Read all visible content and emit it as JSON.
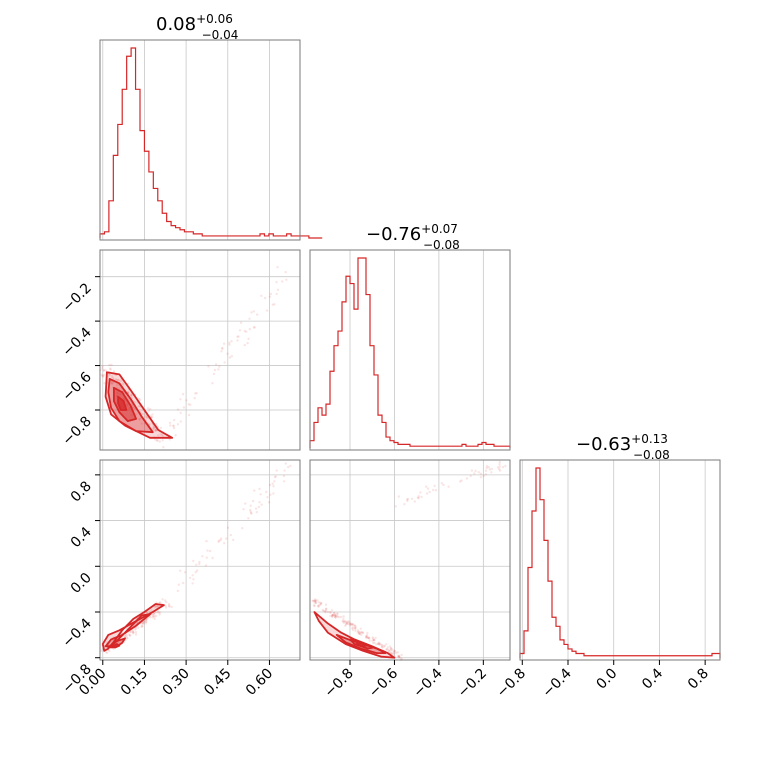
{
  "chart_data": {
    "type": "corner",
    "color": "#d62728",
    "grid": true,
    "parameters": [
      {
        "median": "0.08",
        "plus": "+0.06",
        "minus": "−0.04",
        "range": [
          -0.01,
          0.71
        ],
        "ticks": [
          0.0,
          0.15,
          0.3,
          0.45,
          0.6
        ],
        "tick_labels": [
          "0.00",
          "0.15",
          "0.30",
          "0.45",
          "0.60"
        ]
      },
      {
        "median": "−0.76",
        "plus": "+0.07",
        "minus": "−0.08",
        "range": [
          -0.98,
          -0.08
        ],
        "ticks": [
          -0.8,
          -0.6,
          -0.4,
          -0.2
        ],
        "tick_labels": [
          "−0.8",
          "−0.6",
          "−0.4",
          "−0.2"
        ]
      },
      {
        "median": "−0.63",
        "plus": "+0.13",
        "minus": "−0.08",
        "range": [
          -0.82,
          0.93
        ],
        "ticks": [
          -0.8,
          -0.4,
          0.0,
          0.4,
          0.8
        ],
        "tick_labels": [
          "−0.8",
          "−0.4",
          "0.0",
          "0.4",
          "0.8"
        ]
      }
    ],
    "histograms": [
      {
        "param": 0,
        "bin_start": -0.01,
        "bin_width": 0.016,
        "counts": [
          2,
          3,
          18,
          40,
          55,
          72,
          88,
          92,
          72,
          52,
          42,
          32,
          24,
          18,
          12,
          8,
          6,
          5,
          4,
          3,
          3,
          2,
          2,
          1,
          1,
          1,
          1,
          1,
          1,
          1,
          1,
          1,
          1,
          1,
          1,
          1,
          2,
          1,
          2,
          1,
          1,
          1,
          2,
          1,
          1,
          1,
          1,
          0,
          0,
          0
        ]
      },
      {
        "param": 1,
        "bin_start": -0.98,
        "bin_width": 0.018,
        "counts": [
          4,
          14,
          22,
          18,
          24,
          42,
          56,
          64,
          80,
          94,
          90,
          76,
          104,
          104,
          84,
          56,
          40,
          18,
          14,
          6,
          4,
          3,
          2,
          2,
          2,
          1,
          1,
          1,
          1,
          1,
          1,
          1,
          1,
          1,
          1,
          1,
          1,
          1,
          2,
          1,
          1,
          1,
          2,
          3,
          2,
          2,
          1,
          1,
          1,
          1
        ]
      },
      {
        "param": 2,
        "bin_start": -0.82,
        "bin_width": 0.035,
        "counts": [
          2,
          12,
          40,
          65,
          84,
          70,
          52,
          34,
          18,
          14,
          8,
          6,
          4,
          3,
          2,
          2,
          1,
          1,
          1,
          1,
          1,
          1,
          1,
          1,
          1,
          1,
          1,
          1,
          1,
          1,
          1,
          1,
          1,
          1,
          1,
          1,
          1,
          1,
          1,
          1,
          1,
          1,
          1,
          1,
          1,
          1,
          1,
          1,
          2,
          2
        ]
      }
    ],
    "contours_2d": [
      {
        "x_param": 0,
        "y_param": 1,
        "levels": [
          [
            [
              0.015,
              -0.63
            ],
            [
              0.06,
              -0.64
            ],
            [
              0.1,
              -0.71
            ],
            [
              0.15,
              -0.8
            ],
            [
              0.2,
              -0.89
            ],
            [
              0.25,
              -0.925
            ],
            [
              0.17,
              -0.925
            ],
            [
              0.08,
              -0.87
            ],
            [
              0.03,
              -0.82
            ],
            [
              0.01,
              -0.74
            ]
          ],
          [
            [
              0.025,
              -0.66
            ],
            [
              0.06,
              -0.68
            ],
            [
              0.1,
              -0.75
            ],
            [
              0.14,
              -0.83
            ],
            [
              0.18,
              -0.9
            ],
            [
              0.12,
              -0.895
            ],
            [
              0.06,
              -0.85
            ],
            [
              0.03,
              -0.79
            ],
            [
              0.02,
              -0.72
            ]
          ],
          [
            [
              0.04,
              -0.7
            ],
            [
              0.07,
              -0.72
            ],
            [
              0.1,
              -0.78
            ],
            [
              0.12,
              -0.84
            ],
            [
              0.09,
              -0.85
            ],
            [
              0.06,
              -0.81
            ],
            [
              0.04,
              -0.76
            ]
          ],
          [
            [
              0.055,
              -0.74
            ],
            [
              0.075,
              -0.76
            ],
            [
              0.085,
              -0.8
            ],
            [
              0.065,
              -0.8
            ],
            [
              0.055,
              -0.77
            ]
          ]
        ]
      },
      {
        "x_param": 0,
        "y_param": 2,
        "levels": [
          [
            [
              0.0,
              -0.68
            ],
            [
              0.02,
              -0.6
            ],
            [
              0.06,
              -0.56
            ],
            [
              0.12,
              -0.48
            ],
            [
              0.18,
              -0.4
            ],
            [
              0.22,
              -0.34
            ],
            [
              0.19,
              -0.33
            ],
            [
              0.15,
              -0.4
            ],
            [
              0.11,
              -0.46
            ],
            [
              0.07,
              -0.56
            ],
            [
              0.04,
              -0.66
            ],
            [
              0.02,
              -0.72
            ],
            [
              0.005,
              -0.74
            ]
          ],
          [
            [
              0.01,
              -0.7
            ],
            [
              0.03,
              -0.64
            ],
            [
              0.07,
              -0.6
            ],
            [
              0.12,
              -0.52
            ],
            [
              0.17,
              -0.42
            ],
            [
              0.14,
              -0.43
            ],
            [
              0.1,
              -0.53
            ],
            [
              0.06,
              -0.63
            ],
            [
              0.03,
              -0.7
            ]
          ],
          [
            [
              0.02,
              -0.71
            ],
            [
              0.045,
              -0.66
            ],
            [
              0.08,
              -0.63
            ],
            [
              0.07,
              -0.67
            ],
            [
              0.045,
              -0.71
            ]
          ],
          [
            [
              0.035,
              -0.705
            ],
            [
              0.05,
              -0.68
            ],
            [
              0.06,
              -0.695
            ],
            [
              0.045,
              -0.71
            ]
          ]
        ]
      },
      {
        "x_param": 1,
        "y_param": 2,
        "levels": [
          [
            [
              -0.96,
              -0.4
            ],
            [
              -0.9,
              -0.5
            ],
            [
              -0.84,
              -0.58
            ],
            [
              -0.78,
              -0.64
            ],
            [
              -0.7,
              -0.7
            ],
            [
              -0.63,
              -0.76
            ],
            [
              -0.6,
              -0.8
            ],
            [
              -0.66,
              -0.79
            ],
            [
              -0.74,
              -0.74
            ],
            [
              -0.82,
              -0.68
            ],
            [
              -0.9,
              -0.58
            ],
            [
              -0.94,
              -0.48
            ]
          ],
          [
            [
              -0.86,
              -0.6
            ],
            [
              -0.8,
              -0.645
            ],
            [
              -0.74,
              -0.68
            ],
            [
              -0.68,
              -0.72
            ],
            [
              -0.64,
              -0.76
            ],
            [
              -0.68,
              -0.76
            ],
            [
              -0.75,
              -0.72
            ],
            [
              -0.82,
              -0.665
            ]
          ],
          [
            [
              -0.8,
              -0.64
            ],
            [
              -0.74,
              -0.67
            ],
            [
              -0.69,
              -0.71
            ],
            [
              -0.72,
              -0.72
            ],
            [
              -0.78,
              -0.68
            ]
          ],
          [
            [
              -0.76,
              -0.665
            ],
            [
              -0.72,
              -0.69
            ],
            [
              -0.74,
              -0.7
            ],
            [
              -0.77,
              -0.68
            ]
          ]
        ]
      }
    ]
  }
}
